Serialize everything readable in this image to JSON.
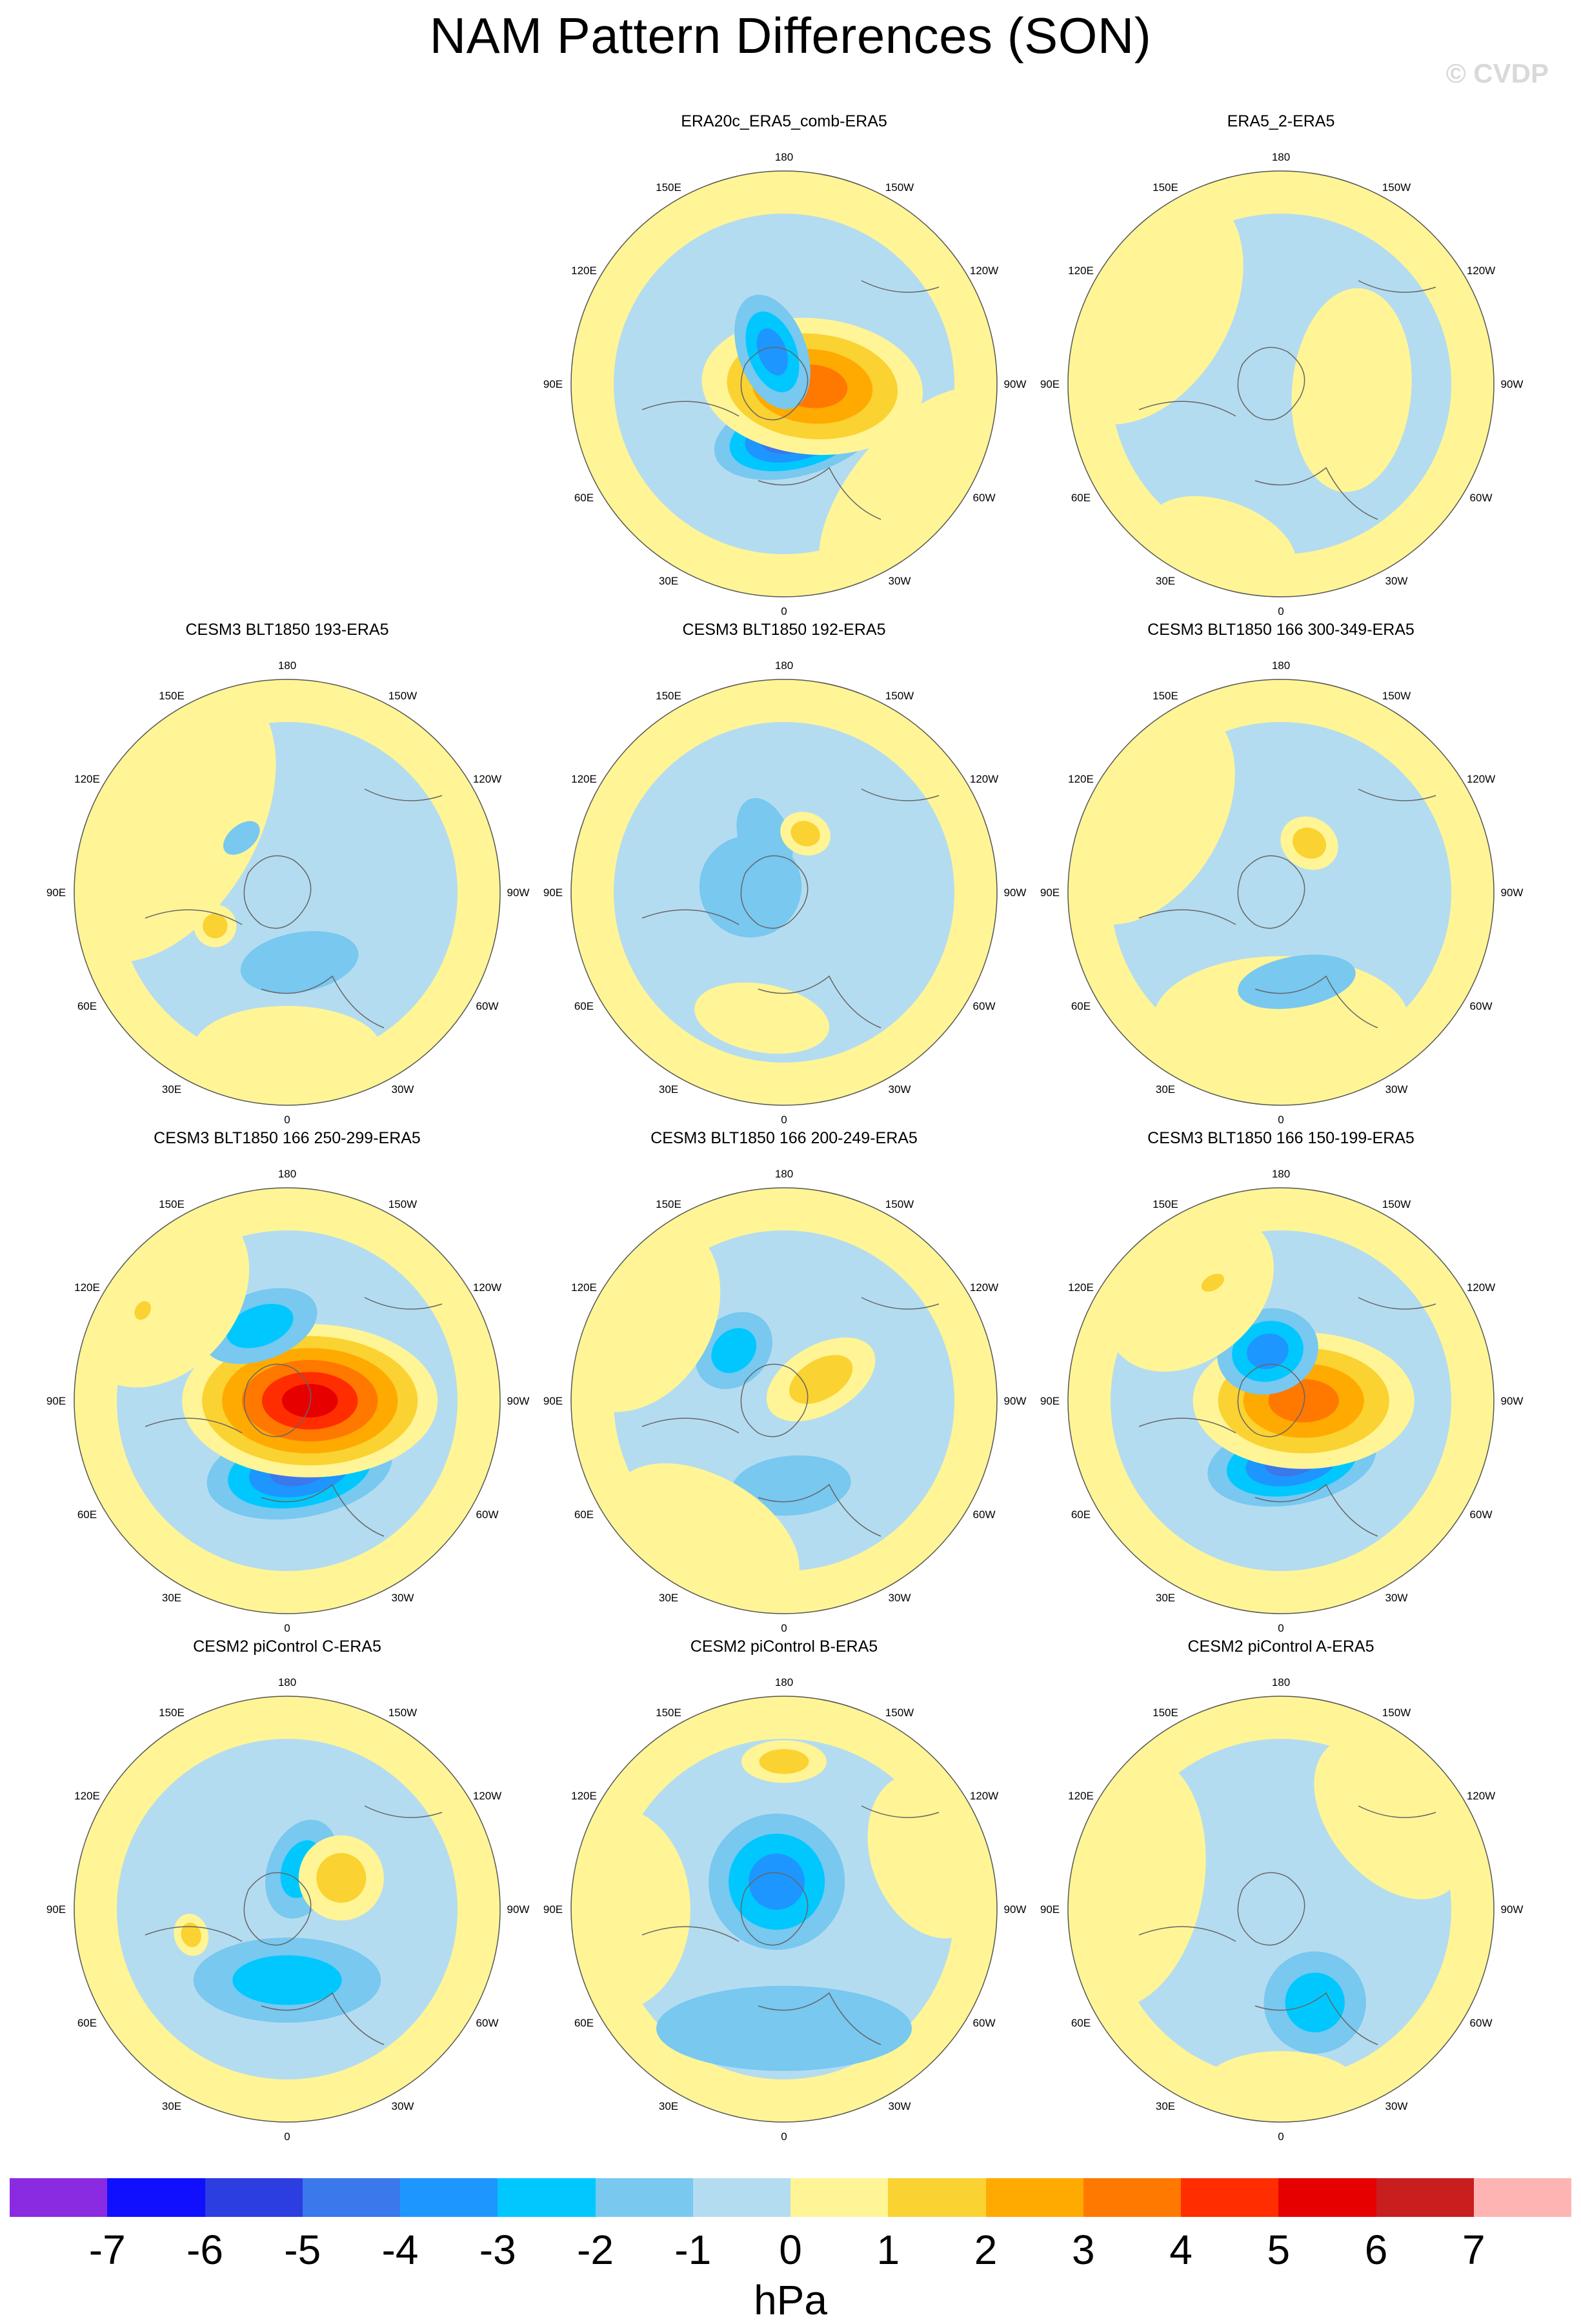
{
  "title": "NAM Pattern Differences (SON)",
  "watermark": "© CVDP",
  "units": "hPa",
  "longitude_labels": [
    "180",
    "150E",
    "120E",
    "90E",
    "60E",
    "30E",
    "0",
    "30W",
    "60W",
    "90W",
    "120W",
    "150W"
  ],
  "colorbar": {
    "colors": [
      "#8a2be2",
      "#1010ff",
      "#2d3ee0",
      "#3a78ec",
      "#1e96ff",
      "#00c8ff",
      "#78c8f0",
      "#b4dcf0",
      "#fff596",
      "#fad232",
      "#ffaa00",
      "#ff7800",
      "#ff2d00",
      "#e60000",
      "#c81e1e",
      "#ffb4b4"
    ],
    "tick_labels": [
      "-7",
      "-6",
      "-5",
      "-4",
      "-3",
      "-2",
      "-1",
      "0",
      "1",
      "2",
      "3",
      "4",
      "5",
      "6",
      "7"
    ]
  },
  "panels": [
    {
      "title": "ERA20c_ERA5_comb-ERA5",
      "features": [
        {
          "lon": 165,
          "colat": 18,
          "rx": 0.2,
          "ry": 0.1,
          "levels": [
            -1,
            -2,
            -3,
            -4,
            -5
          ]
        },
        {
          "lon": 95,
          "colat": 10,
          "rx": 0.16,
          "ry": 0.26,
          "levels": [
            1,
            2,
            3,
            4
          ]
        },
        {
          "lon": 340,
          "colat": 12,
          "rx": 0.08,
          "ry": 0.14,
          "levels": [
            -1,
            -2,
            -3
          ]
        },
        {
          "lon": 130,
          "colat": 60,
          "rx": 0.3,
          "ry": 0.15,
          "levels": [
            1
          ]
        }
      ]
    },
    {
      "title": "ERA5_2-ERA5",
      "features": [
        {
          "lon": 95,
          "colat": 25,
          "rx": 0.24,
          "ry": 0.14,
          "levels": [
            1
          ]
        },
        {
          "lon": 300,
          "colat": 55,
          "rx": 0.3,
          "ry": 0.2,
          "levels": [
            1
          ]
        },
        {
          "lon": 200,
          "colat": 60,
          "rx": 0.18,
          "ry": 0.1,
          "levels": [
            1
          ]
        }
      ]
    },
    {
      "title": "CESM3 BLT1850 193-ERA5",
      "features": [
        {
          "lon": 300,
          "colat": 50,
          "rx": 0.36,
          "ry": 0.22,
          "levels": [
            1
          ]
        },
        {
          "lon": 180,
          "colat": 55,
          "rx": 0.22,
          "ry": 0.1,
          "levels": [
            1
          ]
        },
        {
          "lon": 170,
          "colat": 25,
          "rx": 0.14,
          "ry": 0.07,
          "levels": [
            -1
          ]
        },
        {
          "lon": 245,
          "colat": 28,
          "rx": 0.05,
          "ry": 0.05,
          "levels": [
            1,
            2
          ]
        },
        {
          "lon": 320,
          "colat": 25,
          "rx": 0.05,
          "ry": 0.03,
          "levels": [
            -1
          ]
        }
      ]
    },
    {
      "title": "CESM3 BLT1850 192-ERA5",
      "features": [
        {
          "lon": 190,
          "colat": 45,
          "rx": 0.16,
          "ry": 0.08,
          "levels": [
            1
          ]
        },
        {
          "lon": 280,
          "colat": 12,
          "rx": 0.12,
          "ry": 0.12,
          "levels": [
            -1
          ]
        },
        {
          "lon": 340,
          "colat": 20,
          "rx": 0.06,
          "ry": 0.1,
          "levels": [
            -1
          ]
        },
        {
          "lon": 20,
          "colat": 22,
          "rx": 0.06,
          "ry": 0.05,
          "levels": [
            1,
            2
          ]
        }
      ]
    },
    {
      "title": "CESM3 BLT1850 166 300-349-ERA5",
      "features": [
        {
          "lon": 180,
          "colat": 45,
          "rx": 0.3,
          "ry": 0.15,
          "levels": [
            1
          ]
        },
        {
          "lon": 170,
          "colat": 32,
          "rx": 0.14,
          "ry": 0.06,
          "levels": [
            -1
          ]
        },
        {
          "lon": 30,
          "colat": 20,
          "rx": 0.07,
          "ry": 0.06,
          "levels": [
            1,
            2
          ]
        },
        {
          "lon": 300,
          "colat": 55,
          "rx": 0.28,
          "ry": 0.18,
          "levels": [
            1
          ]
        }
      ]
    },
    {
      "title": "CESM3 BLT1850 166 250-299-ERA5",
      "features": [
        {
          "lon": 170,
          "colat": 25,
          "rx": 0.22,
          "ry": 0.11,
          "levels": [
            -1,
            -2,
            -3,
            -4
          ]
        },
        {
          "lon": 90,
          "colat": 8,
          "rx": 0.18,
          "ry": 0.3,
          "levels": [
            1,
            2,
            3,
            4,
            5,
            6
          ]
        },
        {
          "lon": 340,
          "colat": 28,
          "rx": 0.14,
          "ry": 0.08,
          "levels": [
            -1,
            -2
          ]
        },
        {
          "lon": 310,
          "colat": 58,
          "rx": 0.24,
          "ry": 0.18,
          "levels": [
            1
          ]
        },
        {
          "lon": 302,
          "colat": 60,
          "rx": 0.04,
          "ry": 0.03,
          "levels": [
            1,
            2
          ]
        }
      ]
    },
    {
      "title": "CESM3 BLT1850 166 200-249-ERA5",
      "features": [
        {
          "lon": 175,
          "colat": 30,
          "rx": 0.14,
          "ry": 0.07,
          "levels": [
            -1
          ]
        },
        {
          "lon": 60,
          "colat": 15,
          "rx": 0.08,
          "ry": 0.14,
          "levels": [
            1,
            2
          ]
        },
        {
          "lon": 315,
          "colat": 25,
          "rx": 0.1,
          "ry": 0.08,
          "levels": [
            -1,
            -2
          ]
        },
        {
          "lon": 210,
          "colat": 55,
          "rx": 0.24,
          "ry": 0.14,
          "levels": [
            1
          ]
        },
        {
          "lon": 300,
          "colat": 60,
          "rx": 0.24,
          "ry": 0.18,
          "levels": [
            1
          ]
        }
      ]
    },
    {
      "title": "CESM3 BLT1850 166 150-199-ERA5",
      "features": [
        {
          "lon": 170,
          "colat": 22,
          "rx": 0.2,
          "ry": 0.1,
          "levels": [
            -1,
            -2,
            -3,
            -4
          ]
        },
        {
          "lon": 90,
          "colat": 8,
          "rx": 0.16,
          "ry": 0.26,
          "levels": [
            1,
            2,
            3,
            4
          ]
        },
        {
          "lon": 345,
          "colat": 18,
          "rx": 0.12,
          "ry": 0.1,
          "levels": [
            -1,
            -2,
            -3
          ]
        },
        {
          "lon": 320,
          "colat": 50,
          "rx": 0.22,
          "ry": 0.16,
          "levels": [
            1
          ]
        },
        {
          "lon": 330,
          "colat": 48,
          "rx": 0.05,
          "ry": 0.03,
          "levels": [
            1,
            2
          ]
        }
      ]
    },
    {
      "title": "CESM2 piControl C-ERA5",
      "features": [
        {
          "lon": 180,
          "colat": 25,
          "rx": 0.22,
          "ry": 0.1,
          "levels": [
            -1,
            -2
          ]
        },
        {
          "lon": 20,
          "colat": 15,
          "rx": 0.08,
          "ry": 0.12,
          "levels": [
            -1,
            -2
          ]
        },
        {
          "lon": 60,
          "colat": 22,
          "rx": 0.1,
          "ry": 0.1,
          "levels": [
            1,
            2
          ]
        },
        {
          "lon": 255,
          "colat": 35,
          "rx": 0.05,
          "ry": 0.04,
          "levels": [
            1,
            2
          ]
        }
      ]
    },
    {
      "title": "CESM2 piControl B-ERA5",
      "features": [
        {
          "lon": 180,
          "colat": 42,
          "rx": 0.3,
          "ry": 0.1,
          "levels": [
            -1
          ]
        },
        {
          "lon": 345,
          "colat": 10,
          "rx": 0.16,
          "ry": 0.16,
          "levels": [
            -1,
            -2,
            -3
          ]
        },
        {
          "lon": 0,
          "colat": 52,
          "rx": 0.1,
          "ry": 0.05,
          "levels": [
            1,
            2
          ]
        },
        {
          "lon": 270,
          "colat": 60,
          "rx": 0.24,
          "ry": 0.18,
          "levels": [
            1
          ]
        },
        {
          "lon": 70,
          "colat": 55,
          "rx": 0.2,
          "ry": 0.14,
          "levels": [
            1
          ]
        }
      ]
    },
    {
      "title": "CESM2 piControl A-ERA5",
      "features": [
        {
          "lon": 160,
          "colat": 35,
          "rx": 0.12,
          "ry": 0.12,
          "levels": [
            -1,
            -2
          ]
        },
        {
          "lon": 280,
          "colat": 55,
          "rx": 0.3,
          "ry": 0.18,
          "levels": [
            1
          ]
        },
        {
          "lon": 50,
          "colat": 50,
          "rx": 0.22,
          "ry": 0.14,
          "levels": [
            1
          ]
        },
        {
          "lon": 180,
          "colat": 62,
          "rx": 0.18,
          "ry": 0.08,
          "levels": [
            1
          ]
        }
      ]
    }
  ]
}
